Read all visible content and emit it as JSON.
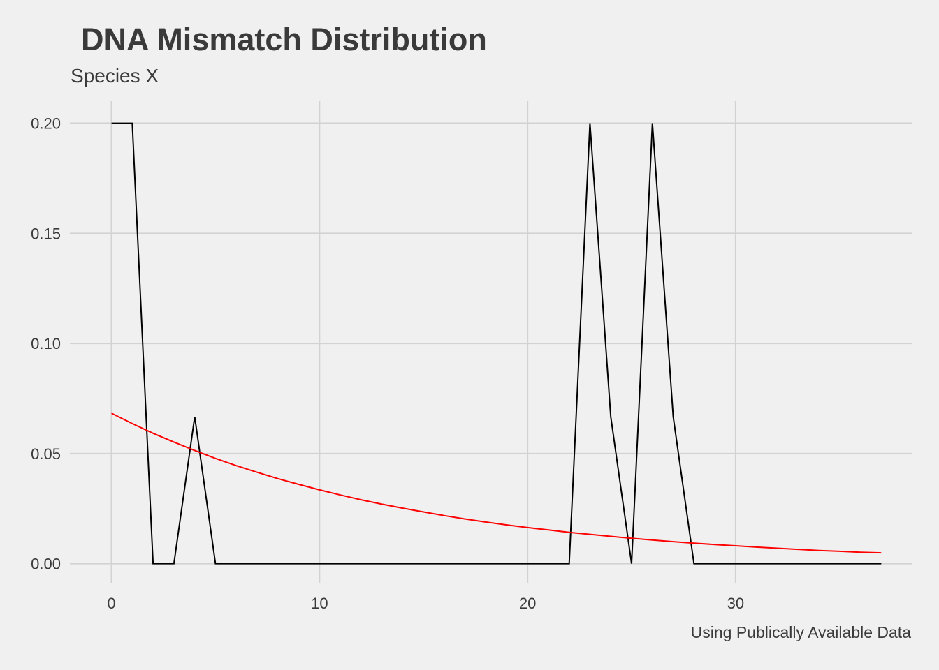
{
  "chart_data": {
    "type": "line",
    "title": "DNA Mismatch Distribution",
    "subtitle": "Species X",
    "caption": "Using Publically Available Data",
    "xlabel": "",
    "ylabel": "",
    "xlim": [
      -2,
      38.5
    ],
    "ylim": [
      -0.009,
      0.21
    ],
    "x_ticks": [
      0,
      10,
      20,
      30
    ],
    "x_tick_labels": [
      "0",
      "10",
      "20",
      "30"
    ],
    "y_ticks": [
      0,
      0.05,
      0.1,
      0.15,
      0.2
    ],
    "y_tick_labels": [
      "0.00",
      "0.05",
      "0.10",
      "0.15",
      "0.20"
    ],
    "grid": true,
    "legend": "none",
    "series": [
      {
        "color": "#000000",
        "x": [
          0,
          1,
          2,
          3,
          4,
          5,
          6,
          7,
          8,
          9,
          10,
          11,
          12,
          13,
          14,
          15,
          16,
          17,
          18,
          19,
          20,
          21,
          22,
          23,
          24,
          25,
          26,
          27,
          28,
          29,
          30,
          31,
          32,
          33,
          34,
          35,
          36,
          37
        ],
        "y": [
          0.2,
          0.2,
          0,
          0,
          0.0667,
          0,
          0,
          0,
          0,
          0,
          0,
          0,
          0,
          0,
          0,
          0,
          0,
          0,
          0,
          0,
          0,
          0,
          0,
          0.2,
          0.0667,
          0,
          0.2,
          0.0667,
          0,
          0,
          0,
          0,
          0,
          0,
          0,
          0,
          0,
          0
        ]
      },
      {
        "color": "#ff0000",
        "x": [
          0,
          1,
          2,
          3,
          4,
          5,
          6,
          7,
          8,
          9,
          10,
          11,
          12,
          13,
          14,
          15,
          16,
          17,
          18,
          19,
          20,
          21,
          22,
          23,
          24,
          25,
          26,
          27,
          28,
          29,
          30,
          31,
          32,
          33,
          34,
          35,
          36,
          37
        ],
        "y": [
          0.0683,
          0.0636,
          0.0592,
          0.0552,
          0.0514,
          0.0478,
          0.0445,
          0.0415,
          0.0386,
          0.036,
          0.0335,
          0.0312,
          0.029,
          0.027,
          0.0252,
          0.0235,
          0.0218,
          0.0203,
          0.0189,
          0.0176,
          0.0164,
          0.0153,
          0.0142,
          0.0133,
          0.0124,
          0.0115,
          0.0107,
          0.01,
          0.0093,
          0.0087,
          0.0081,
          0.0075,
          0.007,
          0.0065,
          0.006,
          0.0056,
          0.0052,
          0.0049
        ]
      }
    ]
  }
}
